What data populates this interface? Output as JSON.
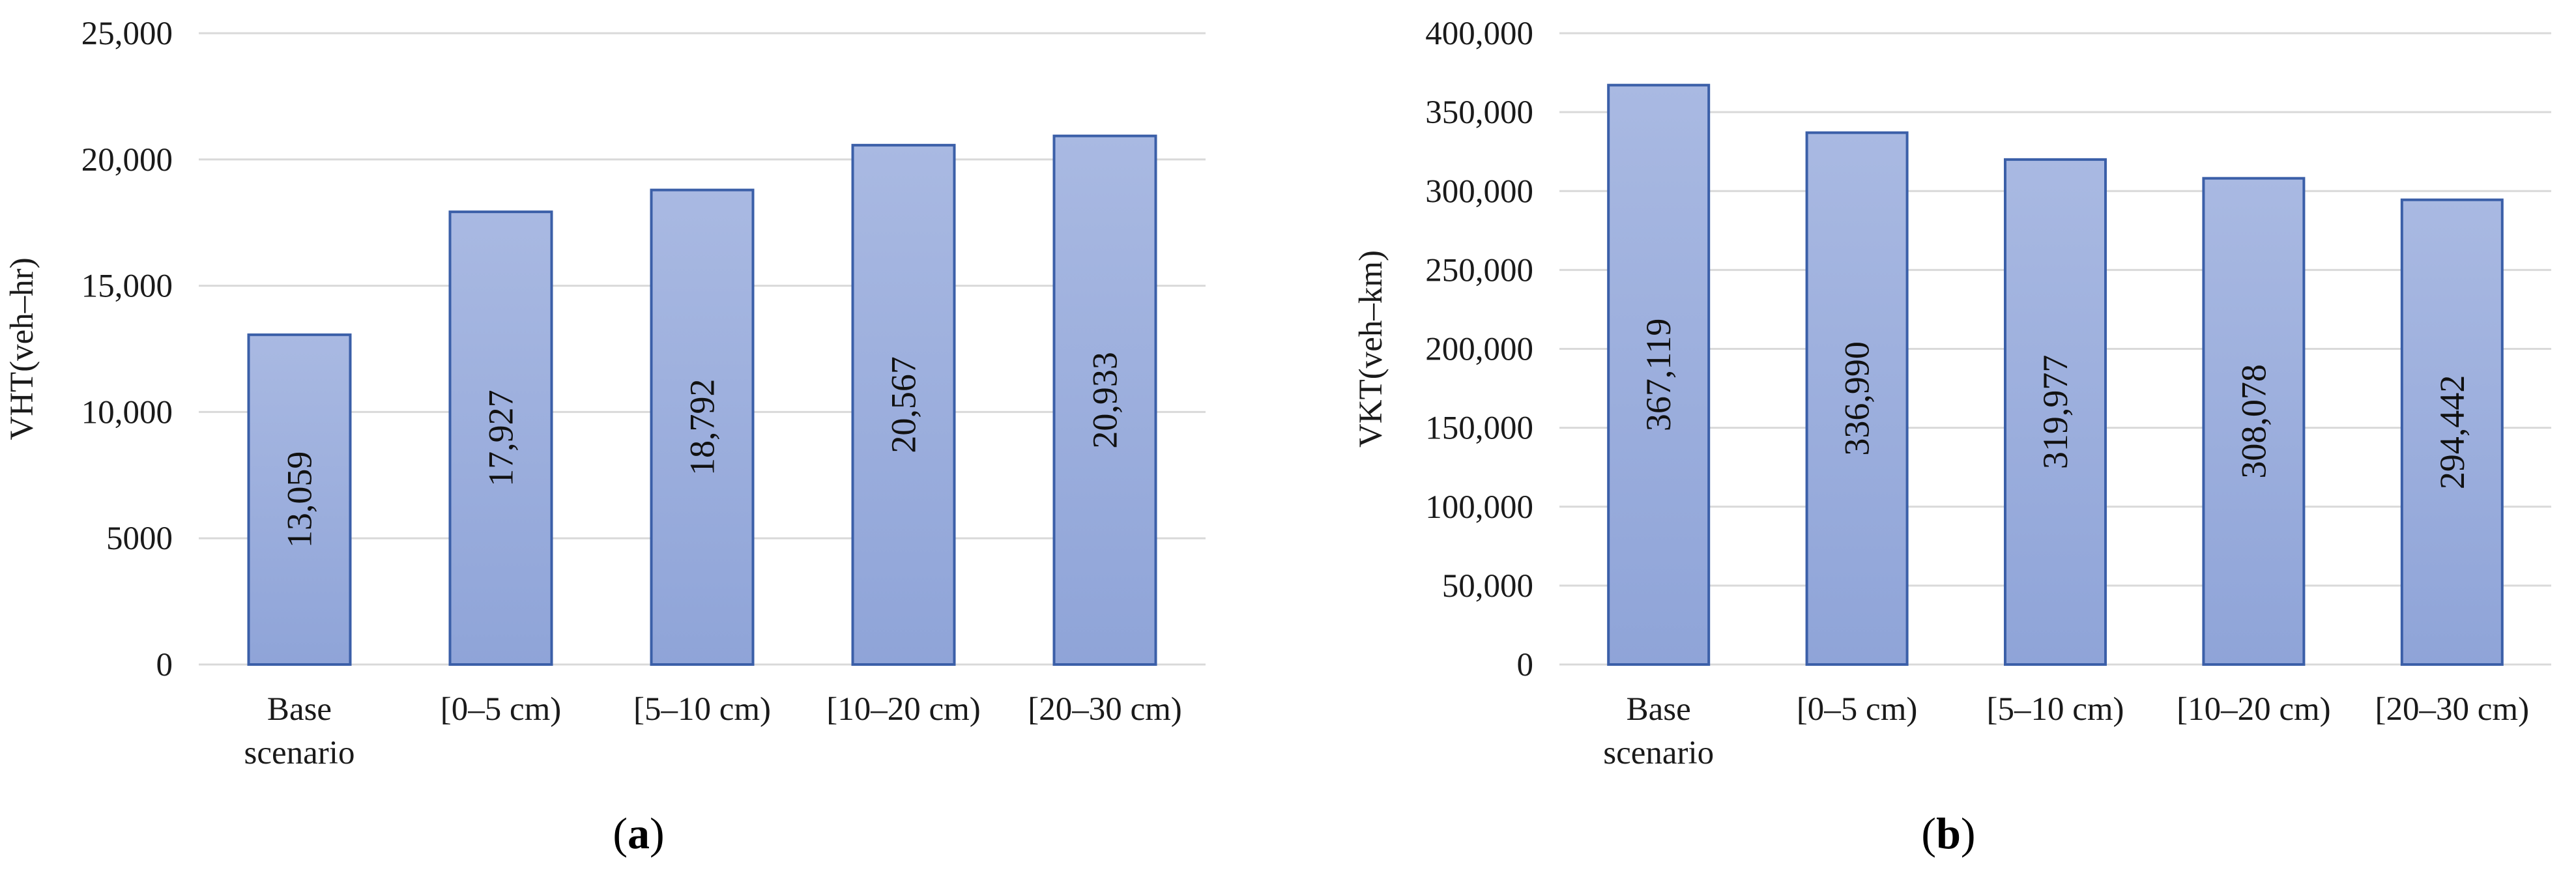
{
  "chart_data": [
    {
      "type": "bar",
      "panel_label": "a",
      "ylabel": "VHT(veh–hr)",
      "categories": [
        [
          "Base",
          "scenario"
        ],
        [
          "[0–5 cm)"
        ],
        [
          "[5–10 cm)"
        ],
        [
          "[10–20 cm)"
        ],
        [
          "[20–30 cm)"
        ]
      ],
      "values": [
        13059,
        17927,
        18792,
        20567,
        20933
      ],
      "data_labels": [
        "13,059",
        "17,927",
        "18,792",
        "20,567",
        "20,933"
      ],
      "yticks": [
        0,
        5000,
        10000,
        15000,
        20000,
        25000
      ],
      "ytick_labels": [
        "0",
        "5000",
        "10,000",
        "15,000",
        "20,000",
        "25,000"
      ],
      "ylim": [
        0,
        25000
      ],
      "grid": true,
      "bar_color": "#8fa4d8",
      "bar_edge_color": "#3b5fa8"
    },
    {
      "type": "bar",
      "panel_label": "b",
      "ylabel": "VKT(veh–km)",
      "categories": [
        [
          "Base",
          "scenario"
        ],
        [
          "[0–5 cm)"
        ],
        [
          "[5–10 cm)"
        ],
        [
          "[10–20 cm)"
        ],
        [
          "[20–30 cm)"
        ]
      ],
      "values": [
        367119,
        336990,
        319977,
        308078,
        294442
      ],
      "data_labels": [
        "367,119",
        "336,990",
        "319,977",
        "308,078",
        "294,442"
      ],
      "yticks": [
        0,
        50000,
        100000,
        150000,
        200000,
        250000,
        300000,
        350000,
        400000
      ],
      "ytick_labels": [
        "0",
        "50,000",
        "100,000",
        "150,000",
        "200,000",
        "250,000",
        "300,000",
        "350,000",
        "400,000"
      ],
      "ylim": [
        0,
        400000
      ],
      "grid": true,
      "bar_color": "#8fa4d8",
      "bar_edge_color": "#3b5fa8"
    }
  ]
}
